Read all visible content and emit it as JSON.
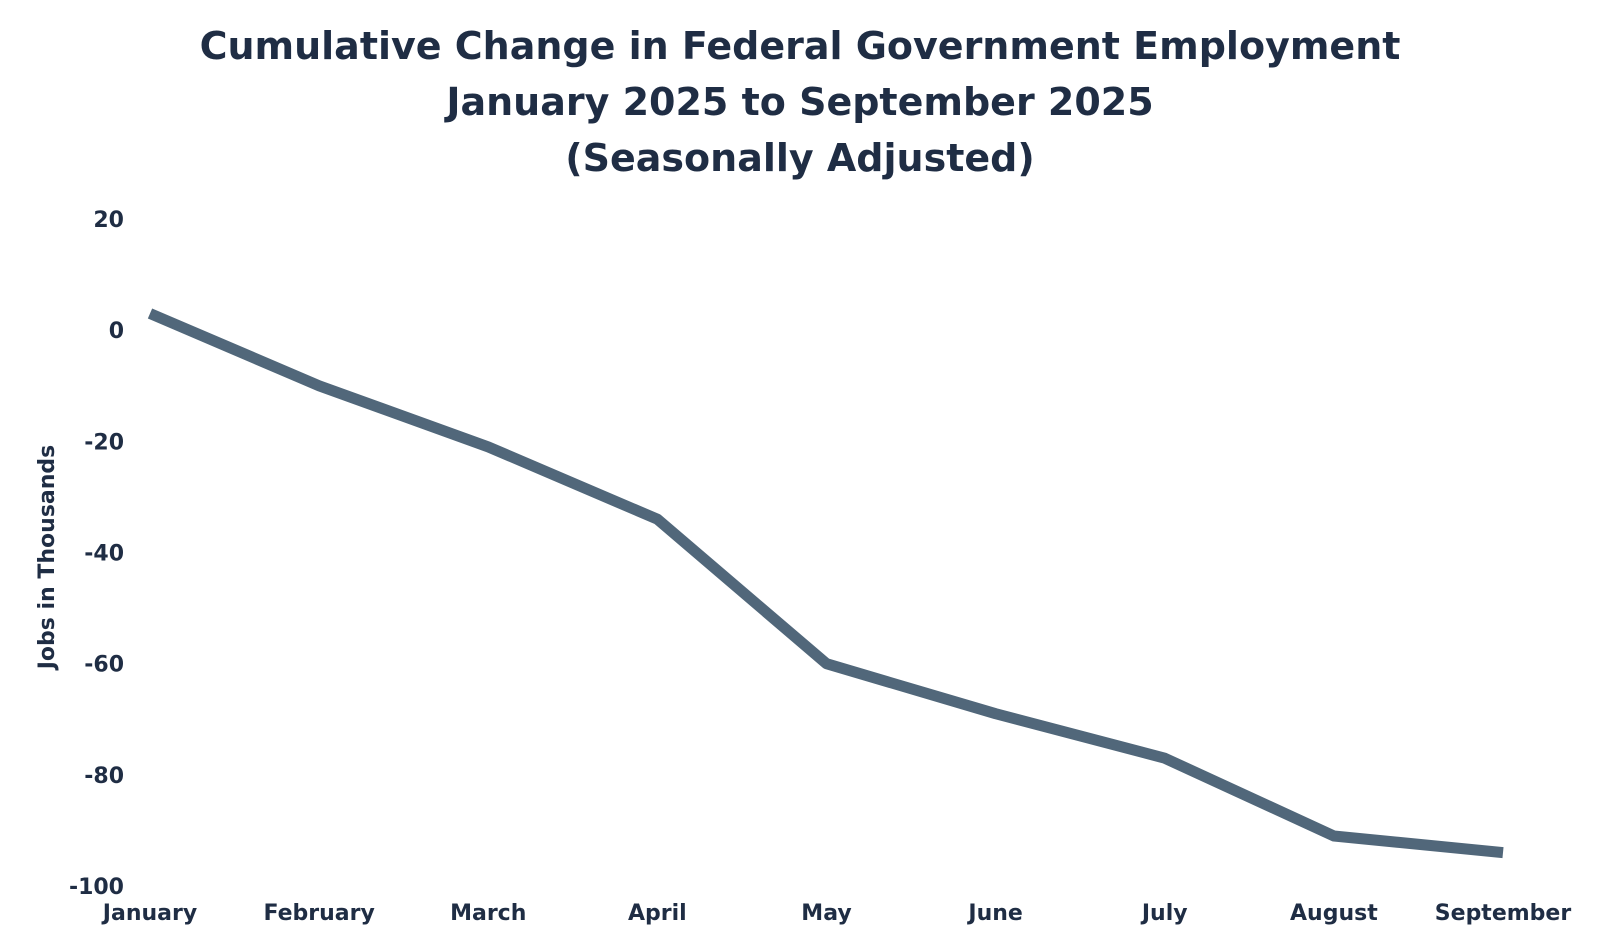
{
  "chart_data": {
    "type": "line",
    "title": [
      "Cumulative Change in Federal Government Employment",
      "January 2025 to September 2025",
      "(Seasonally Adjusted)"
    ],
    "xlabel": "",
    "ylabel": "Jobs in Thousands",
    "categories": [
      "January",
      "February",
      "March",
      "April",
      "May",
      "June",
      "July",
      "August",
      "September"
    ],
    "series": [
      {
        "values": [
          3,
          -10,
          -21,
          -34,
          -60,
          -69,
          -77,
          -91,
          -94
        ]
      }
    ],
    "ylim": [
      -100,
      20
    ],
    "yticks": [
      20,
      0,
      -20,
      -40,
      -60,
      -80,
      -100
    ],
    "grid": false,
    "legend": "none",
    "line_color": "#51677a"
  }
}
